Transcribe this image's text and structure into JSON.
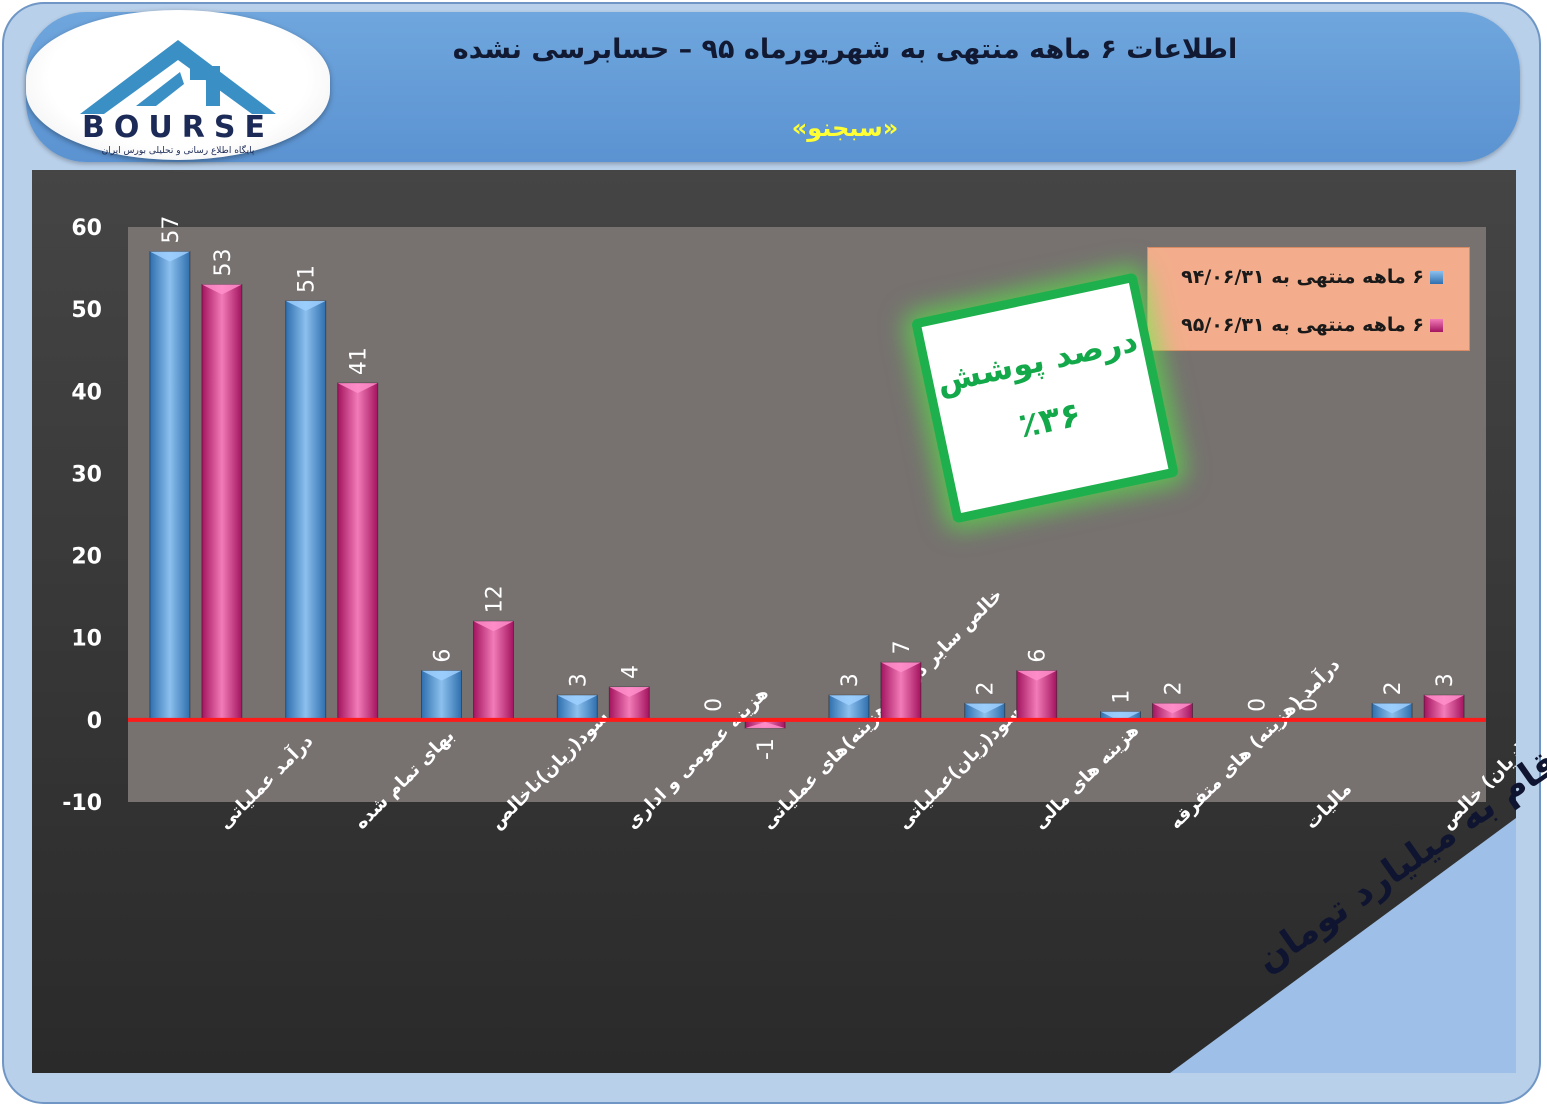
{
  "header": {
    "title": "اطلاعات ۶  ماهه منتهی به شهریورماه ۹۵ – حسابرسی نشده",
    "subtitle": "«سبجنو»",
    "logo_word": "BOURSE",
    "logo_subtitle": "پایگاه اطلاع رسانی و تحلیلی بورس ایران"
  },
  "badge": {
    "line1": "درصد پوشش",
    "line2": "٪۳۶",
    "color": "#1fb04e"
  },
  "unit_note": "ارقام به میلیارد تومان",
  "colors": {
    "series1": "#5b9bd5",
    "series2": "#e0358f",
    "zero_line": "#ff1a1a",
    "plot_bg": "#777170"
  },
  "chart_data": {
    "type": "bar",
    "categories": [
      "درآمد عملیاتی",
      "بهای تمام شده",
      "سود(زیان)ناخالص",
      "هزینه عمومی و اداری",
      "خالص سایر درامد(هزینه)های عملیاتی",
      "سود(زیان)عملیاتی",
      "هزینه های مالی",
      "درآمد (هزینه) های متفرقه",
      "مالیات",
      "سود(زیان) خالص"
    ],
    "series": [
      {
        "name": "۶ ماهه منتهی به ۹۴/۰۶/۳۱",
        "values": [
          57,
          51,
          6,
          3,
          0,
          3,
          2,
          1,
          0,
          2
        ],
        "labels": [
          "57",
          "51",
          "6",
          "3",
          "0",
          "3",
          "2",
          "1",
          "0",
          "2"
        ]
      },
      {
        "name": "۶ ماهه منتهی به ۹۵/۰۶/۳۱",
        "values": [
          53,
          41,
          12,
          4,
          -1,
          7,
          6,
          2,
          0,
          3
        ],
        "labels": [
          "53",
          "41",
          "12",
          "4",
          "-1",
          "7",
          "6",
          "2",
          "0",
          "3"
        ]
      }
    ],
    "ylim": [
      -10,
      60
    ],
    "yticks": [
      -10,
      0,
      10,
      20,
      30,
      40,
      50,
      60
    ],
    "legend_position": "top-right"
  }
}
